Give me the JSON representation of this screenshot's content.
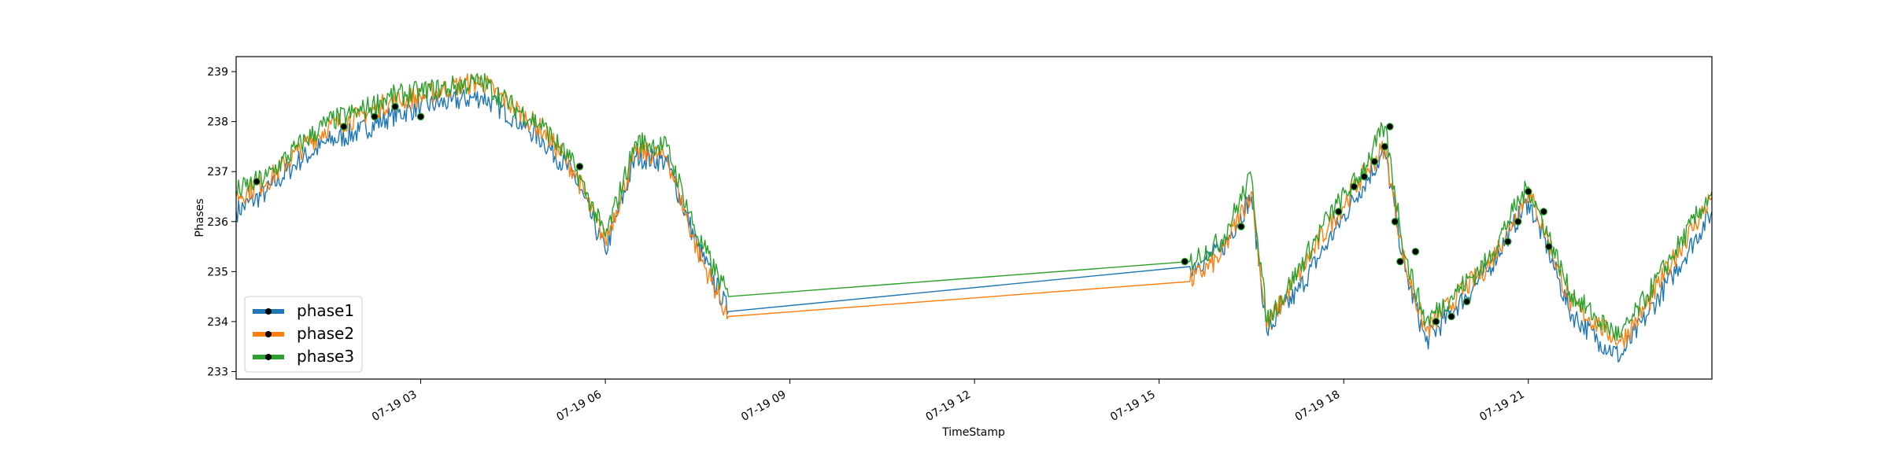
{
  "chart_data": {
    "type": "line",
    "xlabel": "TimeStamp",
    "ylabel": "Phases",
    "x_range": [
      "07-19 00:00",
      "23:59"
    ],
    "ylim": [
      232.85,
      239.3
    ],
    "x_ticks": [
      {
        "value": "07-19 03:00",
        "label": "07-19 03"
      },
      {
        "value": "07-19 06:00",
        "label": "07-19 06"
      },
      {
        "value": "07-19 09:00",
        "label": "07-19 09"
      },
      {
        "value": "07-19 12:00",
        "label": "07-19 12"
      },
      {
        "value": "07-19 15:00",
        "label": "07-19 15"
      },
      {
        "value": "07-19 18:00",
        "label": "07-19 18"
      },
      {
        "value": "07-19 21:00",
        "label": "07-19 21"
      }
    ],
    "y_ticks": [
      233,
      234,
      235,
      236,
      237,
      238,
      239
    ],
    "grid": false,
    "legend_position": "lower-left",
    "markers_note": "black circle markers on selected points",
    "series": [
      {
        "name": "phase1",
        "color": "#1f77b4",
        "points": [
          [
            "00:00",
            236.2
          ],
          [
            "00:30",
            236.6
          ],
          [
            "01:00",
            237.2
          ],
          [
            "01:30",
            237.6
          ],
          [
            "02:00",
            237.8
          ],
          [
            "02:30",
            238.1
          ],
          [
            "03:00",
            238.3
          ],
          [
            "03:30",
            238.4
          ],
          [
            "04:00",
            238.5
          ],
          [
            "04:30",
            238.1
          ],
          [
            "05:00",
            237.6
          ],
          [
            "05:30",
            236.9
          ],
          [
            "06:00",
            235.4
          ],
          [
            "06:30",
            237.3
          ],
          [
            "07:00",
            237.2
          ],
          [
            "07:30",
            235.5
          ],
          [
            "08:00",
            234.2
          ],
          [
            "15:30",
            235.1
          ],
          [
            "16:00",
            235.4
          ],
          [
            "16:30",
            236.5
          ],
          [
            "16:45",
            233.8
          ],
          [
            "17:15",
            234.6
          ],
          [
            "17:45",
            235.6
          ],
          [
            "18:15",
            236.6
          ],
          [
            "18:40",
            237.4
          ],
          [
            "19:00",
            235.0
          ],
          [
            "19:20",
            233.6
          ],
          [
            "19:50",
            234.3
          ],
          [
            "20:20",
            235.0
          ],
          [
            "20:45",
            235.9
          ],
          [
            "21:00",
            236.4
          ],
          [
            "21:20",
            235.4
          ],
          [
            "21:40",
            234.2
          ],
          [
            "22:10",
            233.6
          ],
          [
            "22:30",
            233.3
          ],
          [
            "22:55",
            234.1
          ],
          [
            "23:20",
            234.9
          ],
          [
            "23:59",
            236.2
          ]
        ]
      },
      {
        "name": "phase2",
        "color": "#ff7f0e",
        "points": [
          [
            "00:00",
            236.5
          ],
          [
            "00:30",
            236.8
          ],
          [
            "01:00",
            237.4
          ],
          [
            "01:30",
            237.9
          ],
          [
            "02:00",
            238.1
          ],
          [
            "02:30",
            238.4
          ],
          [
            "03:00",
            238.5
          ],
          [
            "03:30",
            238.7
          ],
          [
            "04:00",
            238.8
          ],
          [
            "04:30",
            238.3
          ],
          [
            "05:00",
            237.8
          ],
          [
            "05:30",
            237.0
          ],
          [
            "06:00",
            235.6
          ],
          [
            "06:30",
            237.4
          ],
          [
            "07:00",
            237.3
          ],
          [
            "07:30",
            235.4
          ],
          [
            "08:00",
            234.1
          ],
          [
            "15:30",
            234.8
          ],
          [
            "16:00",
            235.3
          ],
          [
            "16:30",
            236.6
          ],
          [
            "16:45",
            233.9
          ],
          [
            "17:15",
            234.9
          ],
          [
            "17:45",
            235.9
          ],
          [
            "18:15",
            236.8
          ],
          [
            "18:40",
            237.5
          ],
          [
            "19:00",
            235.1
          ],
          [
            "19:20",
            233.8
          ],
          [
            "19:50",
            234.5
          ],
          [
            "20:20",
            235.1
          ],
          [
            "20:45",
            236.0
          ],
          [
            "21:00",
            236.6
          ],
          [
            "21:20",
            235.6
          ],
          [
            "21:40",
            234.4
          ],
          [
            "22:10",
            233.9
          ],
          [
            "22:30",
            233.6
          ],
          [
            "22:55",
            234.3
          ],
          [
            "23:20",
            235.2
          ],
          [
            "23:59",
            236.5
          ]
        ]
      },
      {
        "name": "phase3",
        "color": "#2ca02c",
        "points": [
          [
            "00:00",
            236.6
          ],
          [
            "00:30",
            236.9
          ],
          [
            "01:00",
            237.5
          ],
          [
            "01:30",
            238.0
          ],
          [
            "02:00",
            238.2
          ],
          [
            "02:30",
            238.5
          ],
          [
            "03:00",
            238.6
          ],
          [
            "03:30",
            238.7
          ],
          [
            "04:00",
            238.8
          ],
          [
            "04:30",
            238.3
          ],
          [
            "05:00",
            237.9
          ],
          [
            "05:30",
            237.1
          ],
          [
            "06:00",
            235.7
          ],
          [
            "06:30",
            237.6
          ],
          [
            "07:00",
            237.5
          ],
          [
            "07:30",
            235.7
          ],
          [
            "08:00",
            234.5
          ],
          [
            "15:30",
            235.2
          ],
          [
            "16:00",
            235.6
          ],
          [
            "16:30",
            236.9
          ],
          [
            "16:45",
            234.0
          ],
          [
            "17:15",
            235.0
          ],
          [
            "17:45",
            236.1
          ],
          [
            "18:15",
            236.9
          ],
          [
            "18:40",
            237.9
          ],
          [
            "19:00",
            235.3
          ],
          [
            "19:20",
            234.0
          ],
          [
            "19:50",
            234.6
          ],
          [
            "20:20",
            235.2
          ],
          [
            "20:45",
            236.2
          ],
          [
            "21:00",
            236.7
          ],
          [
            "21:20",
            235.7
          ],
          [
            "21:40",
            234.6
          ],
          [
            "22:10",
            234.0
          ],
          [
            "22:30",
            233.7
          ],
          [
            "22:55",
            234.5
          ],
          [
            "23:20",
            235.3
          ],
          [
            "23:59",
            236.6
          ]
        ]
      }
    ],
    "marker_points": [
      [
        "00:20",
        236.8
      ],
      [
        "01:45",
        237.9
      ],
      [
        "02:15",
        238.1
      ],
      [
        "02:35",
        238.3
      ],
      [
        "03:00",
        238.1
      ],
      [
        "05:35",
        237.1
      ],
      [
        "15:25",
        235.2
      ],
      [
        "16:20",
        235.9
      ],
      [
        "17:55",
        236.2
      ],
      [
        "18:10",
        236.7
      ],
      [
        "18:20",
        236.9
      ],
      [
        "18:30",
        237.2
      ],
      [
        "18:40",
        237.5
      ],
      [
        "18:45",
        237.9
      ],
      [
        "18:50",
        236.0
      ],
      [
        "18:55",
        235.2
      ],
      [
        "19:10",
        235.4
      ],
      [
        "19:30",
        234.0
      ],
      [
        "19:45",
        234.1
      ],
      [
        "20:00",
        234.4
      ],
      [
        "20:40",
        235.6
      ],
      [
        "20:50",
        236.0
      ],
      [
        "21:00",
        236.6
      ],
      [
        "21:15",
        236.2
      ],
      [
        "21:20",
        235.5
      ]
    ]
  }
}
